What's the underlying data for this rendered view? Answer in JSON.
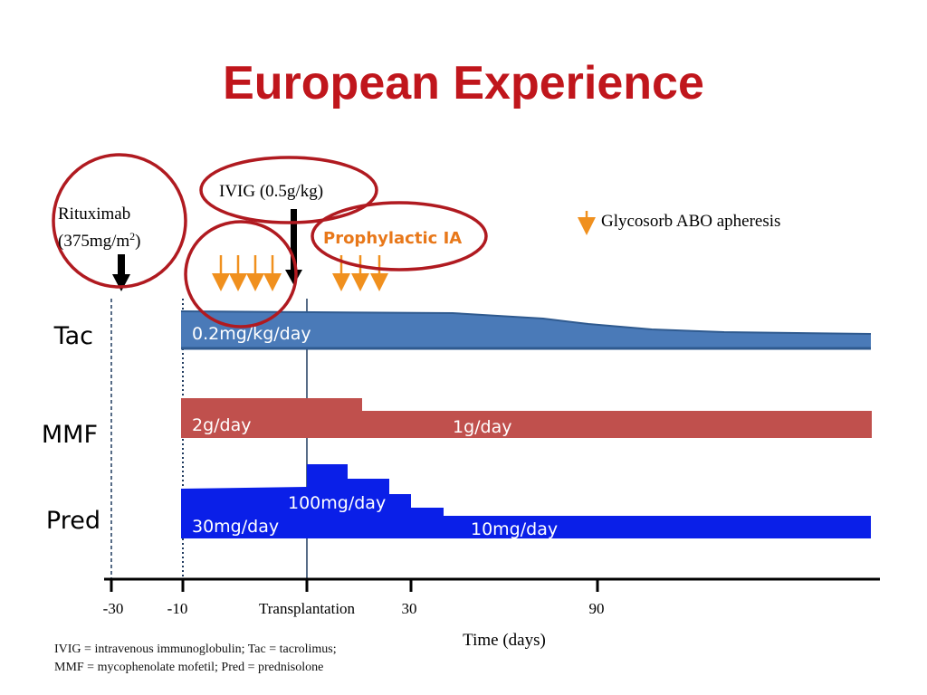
{
  "title": "European Experience",
  "colors": {
    "title": "#c0161c",
    "tac": "#4a7ab8",
    "mmf": "#c0504d",
    "pred": "#0a1fe8",
    "apheresis_arrow": "#f0901e",
    "circle": "#b01a20",
    "prophylactic_text": "#e8781a"
  },
  "annotations": {
    "rituximab_line1": "Rituximab",
    "rituximab_line2_pre": "(375mg/m",
    "rituximab_sup": "2",
    "rituximab_line2_post": ")",
    "ivig": "IVIG (0.5g/kg)",
    "prophylactic": "Prophylactic IA",
    "legend": "Glycosorb ABO apheresis"
  },
  "rows": {
    "tac": {
      "label": "Tac",
      "dose": "0.2mg/kg/day"
    },
    "mmf": {
      "label": "MMF",
      "dose1": "2g/day",
      "dose2": "1g/day"
    },
    "pred": {
      "label": "Pred",
      "dose_start": "30mg/day",
      "dose_peak": "100mg/day",
      "dose_end": "10mg/day"
    }
  },
  "axis": {
    "ticks": [
      "-30",
      "-10",
      "Transplantation",
      "30",
      "90"
    ],
    "label": "Time (days)"
  },
  "footnote": {
    "line1": "IVIG = intravenous immunoglobulin; Tac = tacrolimus;",
    "line2": "MMF = mycophenolate mofetil; Pred = prednisolone"
  }
}
